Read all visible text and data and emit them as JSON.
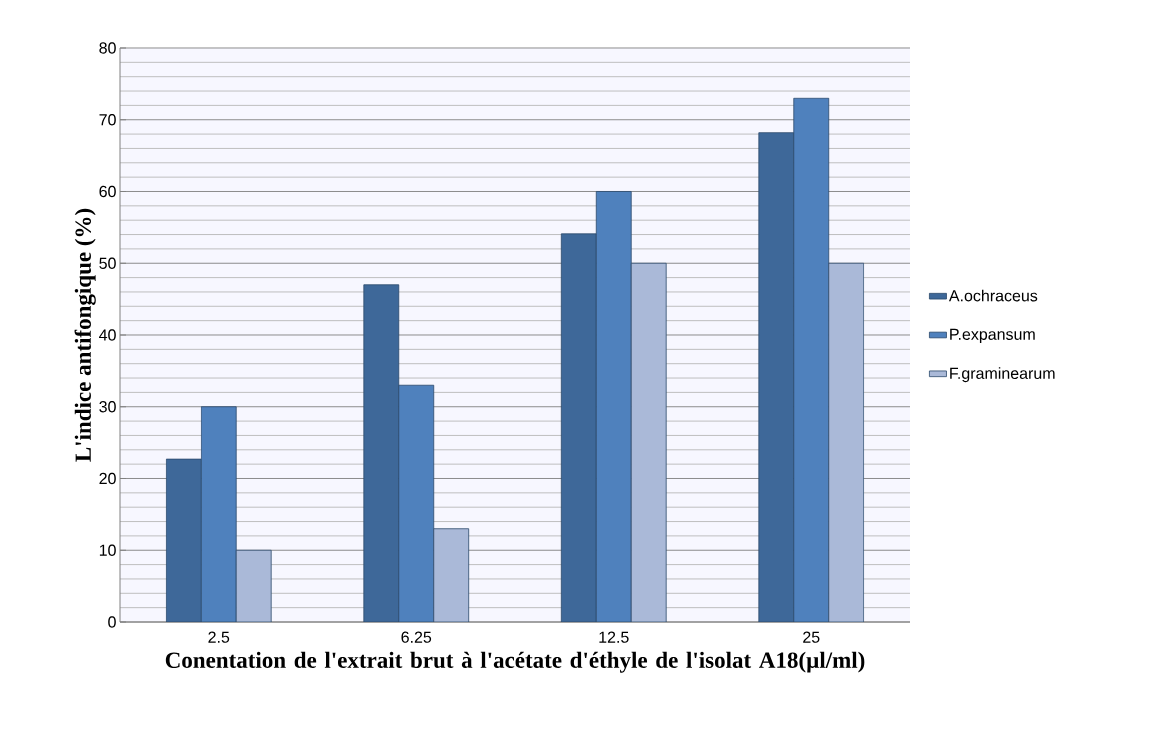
{
  "chart_data": {
    "type": "bar",
    "xlabel": "Conentation de l'extrait brut à l'acétate d'éthyle de l'isolat A18(µl/ml)",
    "ylabel": "L'indice antifongique  (%)",
    "categories": [
      "2.5",
      "6.25",
      "12.5",
      "25"
    ],
    "series": [
      {
        "name": "A.ochraceus",
        "color": "#3e6899",
        "values": [
          22.7,
          47,
          54.1,
          68.2
        ]
      },
      {
        "name": "P.expansum",
        "color": "#4f81bd",
        "values": [
          30,
          33,
          60,
          73
        ]
      },
      {
        "name": "F.graminearum",
        "color": "#aab9d8",
        "values": [
          10,
          13,
          50,
          50
        ]
      }
    ],
    "ylim": [
      0,
      80
    ],
    "yticks": [
      0,
      10,
      20,
      30,
      40,
      50,
      60,
      70,
      80
    ],
    "grid": "y",
    "legend": "right"
  }
}
